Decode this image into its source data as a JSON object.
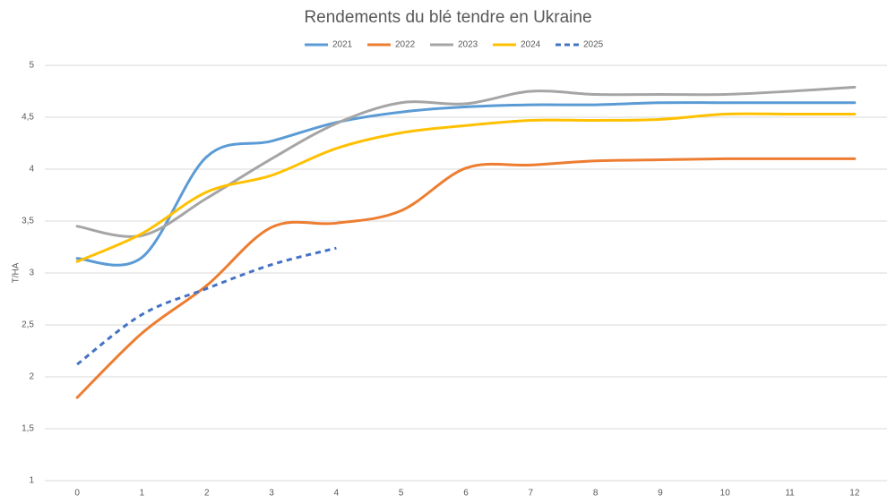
{
  "chart_data": {
    "type": "line",
    "title": "Rendements du blé tendre en Ukraine",
    "y_label": "T/HA",
    "x": [
      0,
      1,
      2,
      3,
      4,
      5,
      6,
      7,
      8,
      9,
      10,
      11,
      12
    ],
    "xlim": [
      -0.5,
      12.5
    ],
    "xticks": [
      0,
      1,
      2,
      3,
      4,
      5,
      6,
      7,
      8,
      9,
      10,
      11,
      12
    ],
    "ylim": [
      1,
      5
    ],
    "yticks": [
      1,
      {
        "value": 1.5,
        "label": "1,5"
      },
      2,
      {
        "value": 2.5,
        "label": "2,5"
      },
      3,
      {
        "value": 3.5,
        "label": "3,5"
      },
      4,
      {
        "value": 4.5,
        "label": "4,5"
      },
      5
    ],
    "grid": true,
    "smooth": true,
    "legend": "top",
    "series": [
      {
        "name": "2021",
        "color": "#5b9bd5",
        "style": "solid",
        "values": [
          3.14,
          3.15,
          4.12,
          4.27,
          4.45,
          4.55,
          4.6,
          4.62,
          4.62,
          4.64,
          4.64,
          4.64,
          4.64
        ]
      },
      {
        "name": "2022",
        "color": "#ed7d31",
        "style": "solid",
        "values": [
          1.8,
          2.42,
          2.88,
          3.44,
          3.48,
          3.6,
          4.01,
          4.04,
          4.08,
          4.09,
          4.1,
          4.1,
          4.1
        ]
      },
      {
        "name": "2023",
        "color": "#a5a5a5",
        "style": "solid",
        "values": [
          3.45,
          3.36,
          3.72,
          4.1,
          4.44,
          4.64,
          4.63,
          4.75,
          4.72,
          4.72,
          4.72,
          4.75,
          4.79
        ]
      },
      {
        "name": "2024",
        "color": "#ffc000",
        "style": "solid",
        "values": [
          3.11,
          3.38,
          3.78,
          3.94,
          4.2,
          4.35,
          4.42,
          4.47,
          4.47,
          4.48,
          4.53,
          4.53,
          4.53
        ]
      },
      {
        "name": "2025",
        "color": "#4472c4",
        "style": "dashed",
        "values": [
          2.12,
          2.6,
          2.85,
          3.08,
          3.24,
          null,
          null,
          null,
          null,
          null,
          null,
          null,
          null
        ]
      }
    ]
  }
}
